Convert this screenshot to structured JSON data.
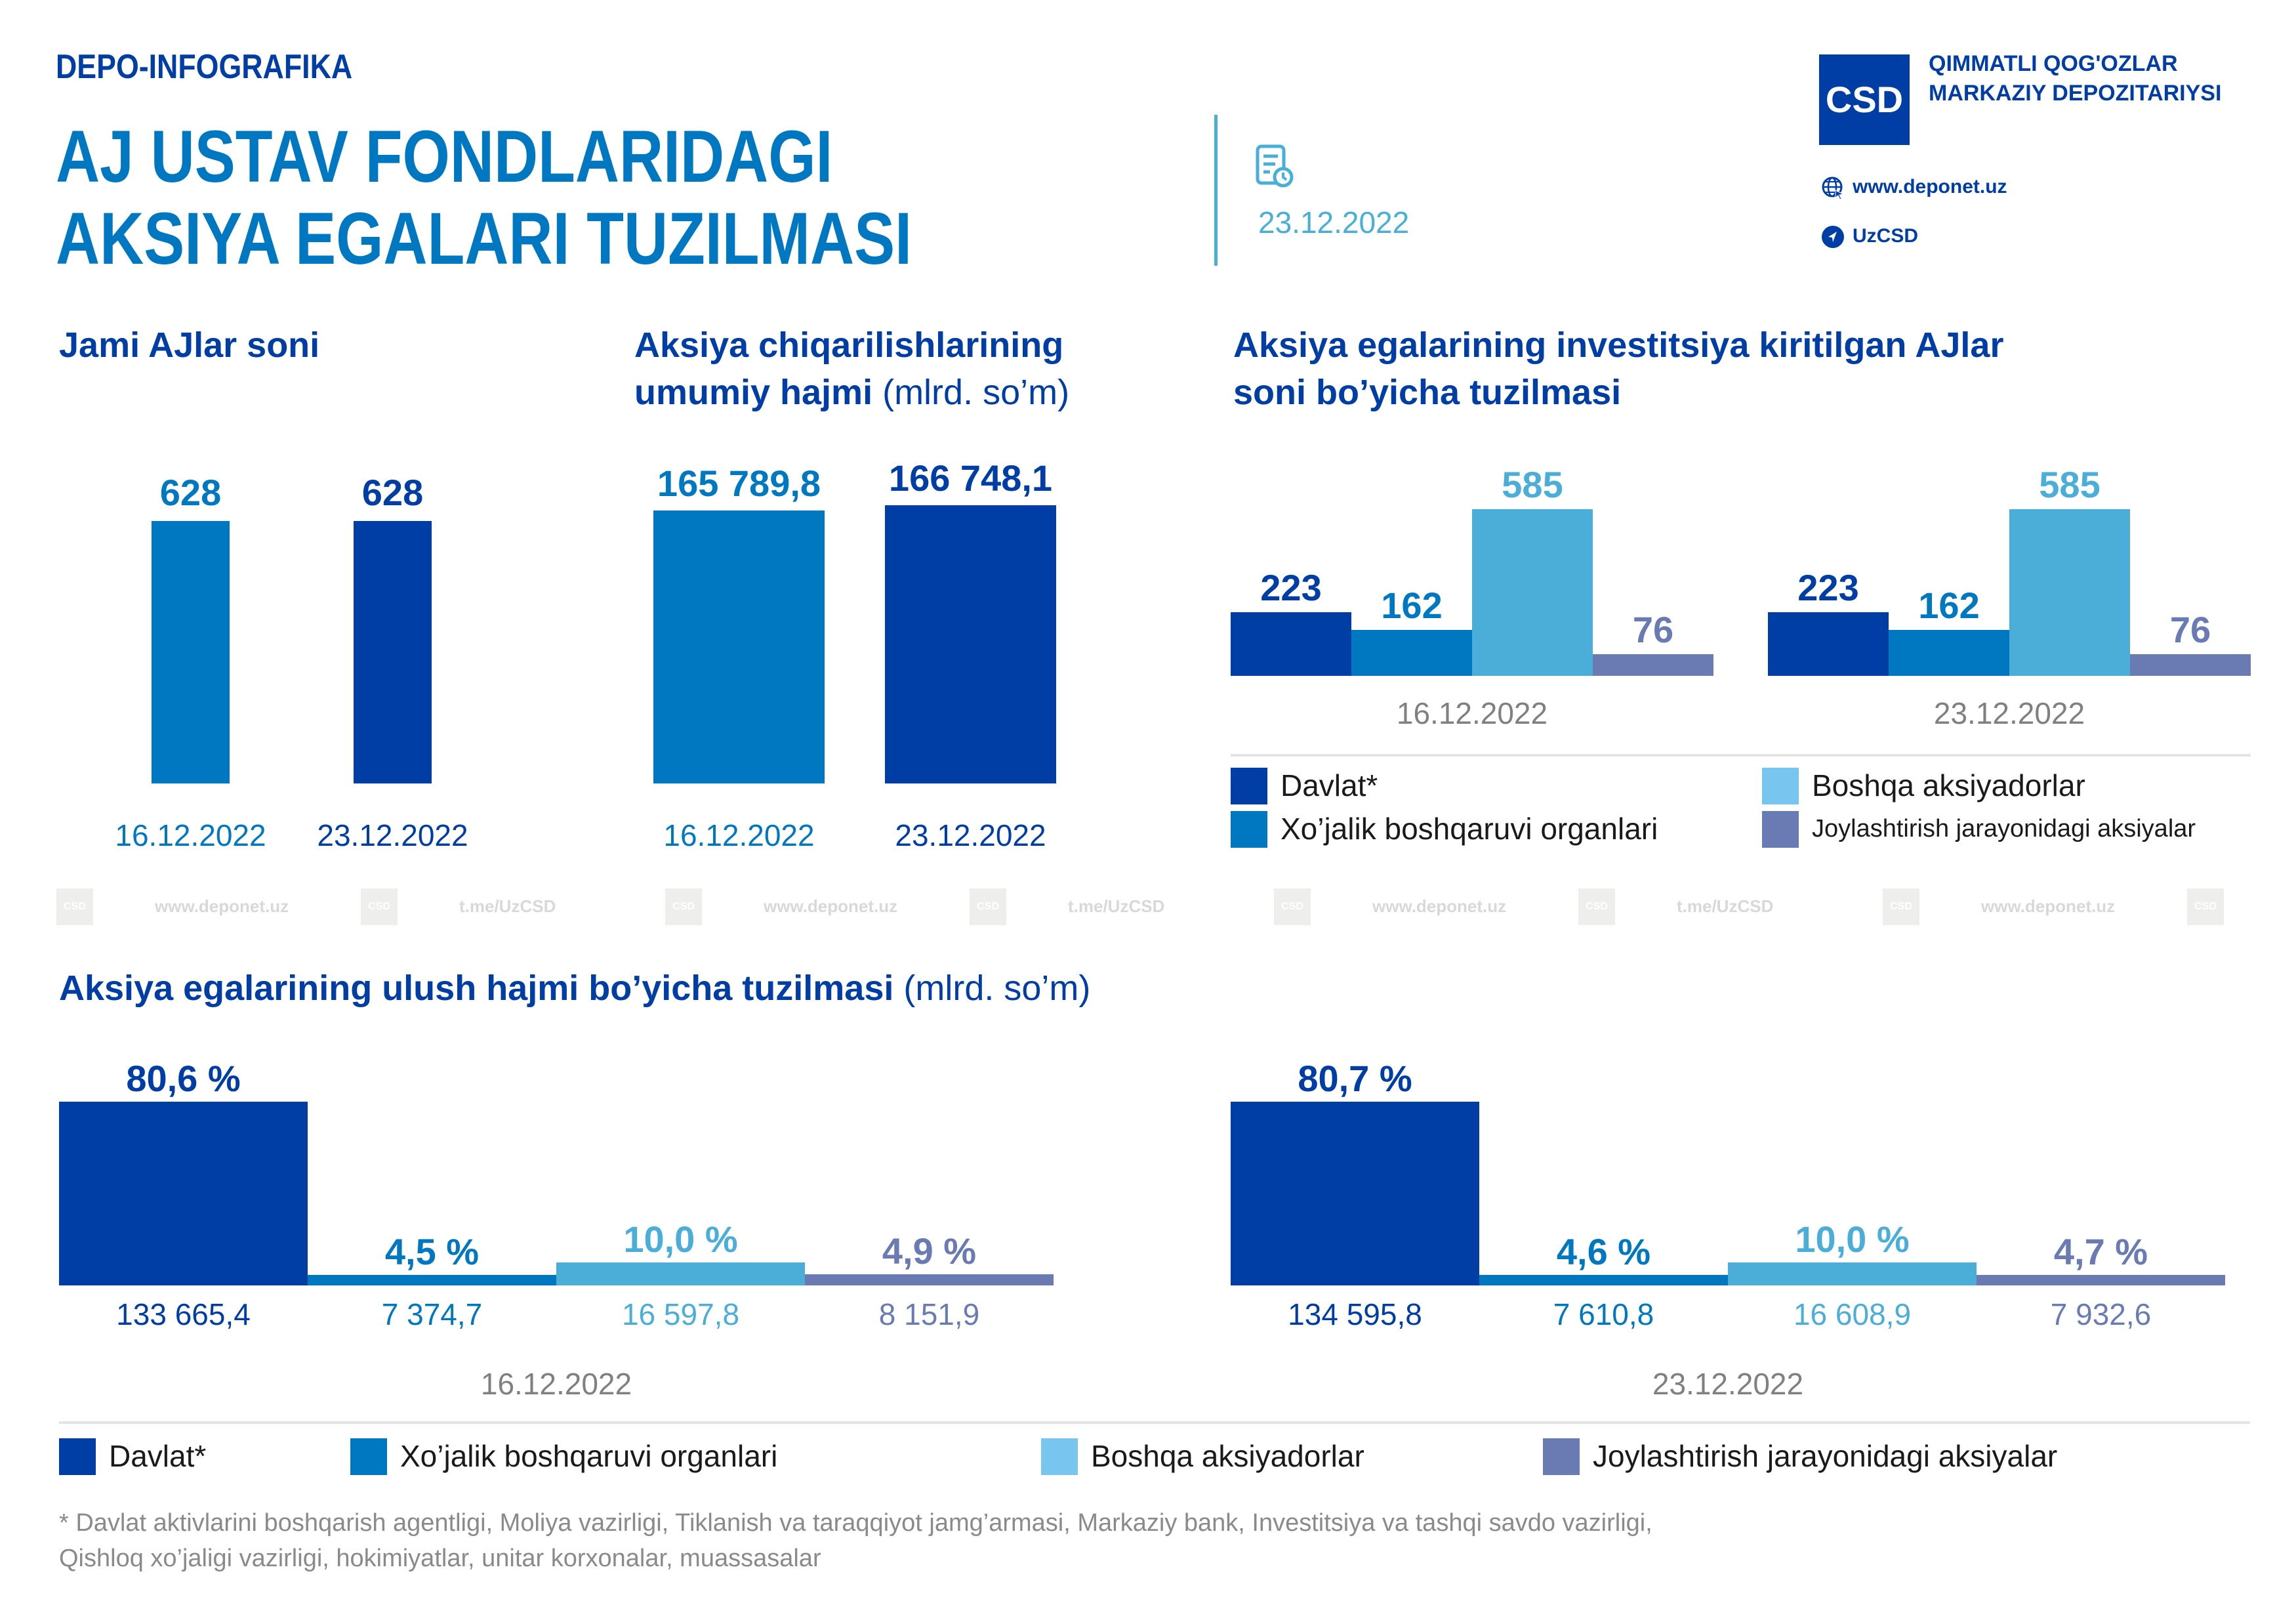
{
  "header": {
    "kicker": "DEPO-INFOGRAFIKA",
    "title_line1": "AJ USTAV FONDLARIDAGI",
    "title_line2": "AKSIYA EGALARI TUZILMASI",
    "date": "23.12.2022",
    "date_icon": "document-clock-icon",
    "org_line1": "QIMMATLI QOG'OZLAR",
    "org_line2": "MARKAZIY DEPOZITARIYSI",
    "logo_text": "CSD",
    "website": "www.deponet.uz",
    "telegram": "UzCSD",
    "website_icon": "globe-icon",
    "telegram_icon": "telegram-icon"
  },
  "colors": {
    "davlat": "#003da5",
    "xojalik": "#0078c1",
    "boshqa": "#4aaed8",
    "boshqa_legend": "#78c5ef",
    "joylashtirish": "#6a7bb4",
    "gray_text": "#8a8a8a"
  },
  "watermark": {
    "items": [
      "www.deponet.uz",
      "t.me/UzCSD",
      "www.deponet.uz",
      "t.me/UzCSD",
      "www.deponet.uz",
      "t.me/UzCSD",
      "www.deponet.uz"
    ],
    "logo_text": "CSD"
  },
  "legend_small": {
    "davlat": "Davlat*",
    "xojalik": "Xo’jalik boshqaruvi organlari",
    "boshqa": "Boshqa aksiyadorlar",
    "joylashtirish": "Joylashtirish jarayonidagi aksiyalar"
  },
  "footnote": {
    "line1": "* Davlat aktivlarini boshqarish agentligi, Moliya vazirligi, Tiklanish va taraqqiyot jamg’armasi, Markaziy bank, Investitsiya va tashqi savdo vazirligi,",
    "line2": "Qishloq xo’jaligi vazirligi, hokimiyatlar, unitar korxonalar, muassasalar"
  },
  "chart_data": [
    {
      "type": "bar",
      "title": "Jami AJlar soni",
      "categories": [
        "16.12.2022",
        "23.12.2022"
      ],
      "values": [
        628,
        628
      ],
      "labels": [
        "628",
        "628"
      ],
      "ylim": [
        0,
        628
      ]
    },
    {
      "type": "bar",
      "title": "Aksiya chiqarilishlarining umumiy hajmi",
      "title_line1": "Aksiya chiqarilishlarining",
      "title_line2": "umumiy hajmi",
      "unit": "(mlrd. so’m)",
      "categories": [
        "16.12.2022",
        "23.12.2022"
      ],
      "values": [
        165789.8,
        166748.1
      ],
      "labels": [
        "165 789,8",
        "166 748,1"
      ]
    },
    {
      "type": "bar",
      "title": "Aksiya egalarining investitsiya kiritilgan AJlar soni bo’yicha tuzilmasi",
      "title_line1": "Aksiya egalarining investitsiya kiritilgan AJlar",
      "title_line2": "soni bo’yicha tuzilmasi",
      "categories": [
        "16.12.2022",
        "23.12.2022"
      ],
      "series": [
        {
          "name": "Davlat*",
          "values": [
            223,
            223
          ],
          "labels": [
            "223",
            "223"
          ]
        },
        {
          "name": "Xo’jalik boshqaruvi organlari",
          "values": [
            162,
            162
          ],
          "labels": [
            "162",
            "162"
          ]
        },
        {
          "name": "Boshqa aksiyadorlar",
          "values": [
            585,
            585
          ],
          "labels": [
            "585",
            "585"
          ]
        },
        {
          "name": "Joylashtirish jarayonidagi aksiyalar",
          "values": [
            76,
            76
          ],
          "labels": [
            "76",
            "76"
          ]
        }
      ],
      "legend": "bottom"
    },
    {
      "type": "bar",
      "title": "Aksiya egalarining ulush hajmi bo’yicha tuzilmasi",
      "unit": "(mlrd. so’m)",
      "categories": [
        "16.12.2022",
        "23.12.2022"
      ],
      "series": [
        {
          "name": "Davlat*",
          "percent": [
            80.6,
            80.7
          ],
          "percent_labels": [
            "80,6 %",
            "80,7 %"
          ],
          "values": [
            133665.4,
            134595.8
          ],
          "value_labels": [
            "133 665,4",
            "134 595,8"
          ]
        },
        {
          "name": "Xo’jalik boshqaruvi organlari",
          "percent": [
            4.5,
            4.6
          ],
          "percent_labels": [
            "4,5 %",
            "4,6 %"
          ],
          "values": [
            7374.7,
            7610.8
          ],
          "value_labels": [
            "7 374,7",
            "7 610,8"
          ]
        },
        {
          "name": "Boshqa aksiyadorlar",
          "percent": [
            10.0,
            10.0
          ],
          "percent_labels": [
            "10,0 %",
            "10,0 %"
          ],
          "values": [
            16597.8,
            16608.9
          ],
          "value_labels": [
            "16 597,8",
            "16 608,9"
          ]
        },
        {
          "name": "Joylashtirish jarayonidagi aksiyalar",
          "percent": [
            4.9,
            4.7
          ],
          "percent_labels": [
            "4,9 %",
            "4,7 %"
          ],
          "values": [
            8151.9,
            7932.6
          ],
          "value_labels": [
            "8 151,9",
            "7 932,6"
          ]
        }
      ],
      "legend": "bottom"
    }
  ]
}
